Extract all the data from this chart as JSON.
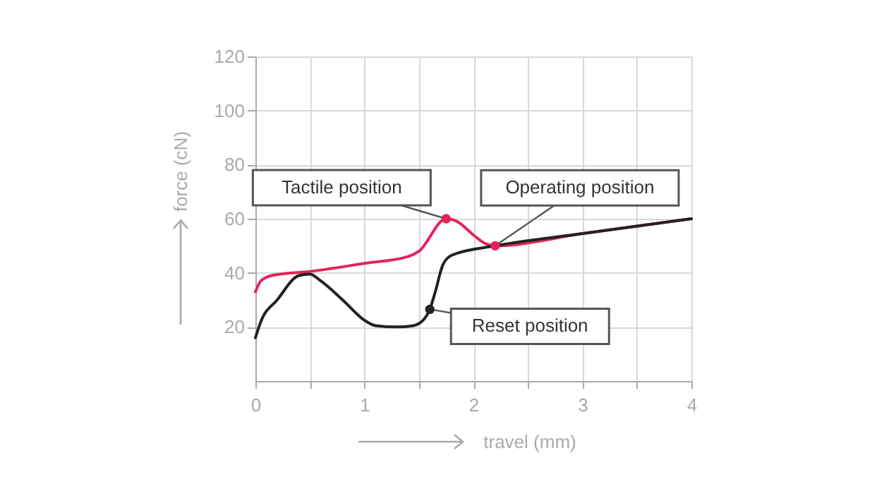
{
  "chart_data": {
    "type": "line",
    "xlabel": "travel (mm)",
    "ylabel": "force (cN)",
    "xlim": [
      0,
      4
    ],
    "ylim": [
      0,
      120
    ],
    "xticks": [
      0,
      {
        "value": 0.5,
        "label": null
      },
      1,
      {
        "value": 1.5,
        "label": null
      },
      2,
      {
        "value": 2.5,
        "label": null
      },
      3,
      {
        "value": 3.5,
        "label": null
      },
      4
    ],
    "yticks": [
      20,
      40,
      60,
      80,
      100,
      120
    ],
    "grid": true,
    "marker": "none",
    "line_style": "solid",
    "series": [
      {
        "color": "#e3245a",
        "x": [
          0,
          0.05,
          0.15,
          0.5,
          1.0,
          1.4,
          1.5,
          1.75,
          1.85,
          2.0,
          2.1,
          2.2,
          3,
          4
        ],
        "values": [
          33,
          37,
          39,
          40.5,
          43.5,
          46,
          48,
          60,
          59,
          54,
          51,
          50,
          54.5,
          60
        ]
      },
      {
        "color": "#222222",
        "x": [
          0,
          0.05,
          0.2,
          0.4,
          0.5,
          0.6,
          0.8,
          1.0,
          1.1,
          1.3,
          1.45,
          1.55,
          1.6,
          1.65,
          1.72,
          1.8,
          2.2,
          3,
          4
        ],
        "values": [
          16,
          22,
          30,
          39,
          39.5,
          37,
          30,
          22.5,
          20.5,
          20,
          20.5,
          23,
          26.5,
          33,
          43,
          46.5,
          50,
          54.5,
          60
        ]
      }
    ],
    "annotations": [
      {
        "text": "Tactile position",
        "x": 1.75,
        "y": 60
      },
      {
        "text": "Operating position",
        "x": 2.2,
        "y": 50
      },
      {
        "text": "Reset position",
        "x": 1.6,
        "y": 26.5
      }
    ]
  }
}
